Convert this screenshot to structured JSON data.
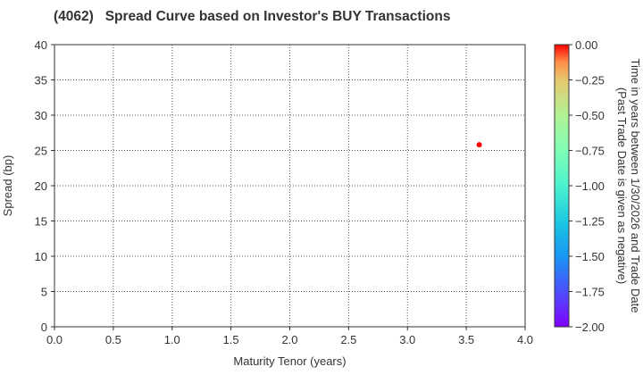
{
  "title": "(4062)   Spread Curve based on Investor's BUY Transactions",
  "chart_data": {
    "type": "scatter",
    "title": "(4062)   Spread Curve based on Investor's BUY Transactions",
    "xlabel": "Maturity Tenor (years)",
    "ylabel": "Spread (bp)",
    "xlim": [
      0.0,
      4.0
    ],
    "ylim": [
      0,
      40
    ],
    "x_ticks": [
      "0.0",
      "0.5",
      "1.0",
      "1.5",
      "2.0",
      "2.5",
      "3.0",
      "3.5",
      "4.0"
    ],
    "y_ticks": [
      "0",
      "5",
      "10",
      "15",
      "20",
      "25",
      "30",
      "35",
      "40"
    ],
    "grid": true,
    "points": [
      {
        "x": 3.61,
        "y": 25.8,
        "color_value": 0.0,
        "color": "#ff0000"
      }
    ],
    "colorbar": {
      "label_line1": "Time in years between 1/30/2026 and Trade Date",
      "label_line2": "(Past Trade Date is given as negative)",
      "range": [
        -2.0,
        0.0
      ],
      "ticks": [
        "0.00",
        "−0.25",
        "−0.50",
        "−0.75",
        "−1.00",
        "−1.25",
        "−1.50",
        "−1.75",
        "−2.00"
      ],
      "colormap": "rainbow"
    }
  }
}
